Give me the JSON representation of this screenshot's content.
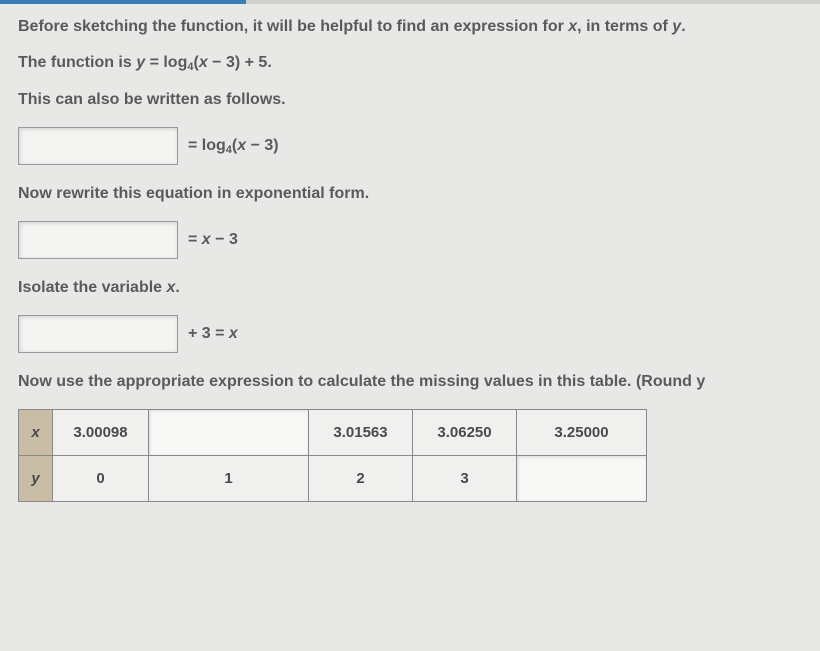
{
  "intro": {
    "p1_a": "Before sketching the function, it will be helpful to find an expression for ",
    "p1_x": "x",
    "p1_b": ", in terms of ",
    "p1_y": "y",
    "p1_c": ".",
    "p2_a": "The function is ",
    "p2_y": "y",
    "p2_eq": " = log",
    "p2_base": "4",
    "p2_b": "(",
    "p2_x": "x",
    "p2_c": " − 3) + 5.",
    "p3": "This can also be written as follows."
  },
  "step1": {
    "rhs_a": " = log",
    "rhs_base": "4",
    "rhs_b": "(",
    "rhs_x": "x",
    "rhs_c": " − 3)"
  },
  "step2": {
    "label": "Now rewrite this equation in exponential form.",
    "rhs_a": " = ",
    "rhs_x": "x",
    "rhs_b": " − 3"
  },
  "step3": {
    "label": "Isolate the variable ",
    "label_x": "x",
    "label_b": ".",
    "rhs_a": " + 3 = ",
    "rhs_x": "x"
  },
  "table": {
    "caption": "Now use the appropriate expression to calculate the missing values in this table. (Round y",
    "header_x": "x",
    "header_y": "y",
    "x": [
      "3.00098",
      "",
      "3.01563",
      "3.06250",
      "3.25000"
    ],
    "y": [
      "0",
      "1",
      "2",
      "3",
      ""
    ]
  },
  "colors": {
    "page_bg": "#e8e8e6",
    "text": "#5a5a5a",
    "border": "#888888",
    "th_bg": "#c9bda6",
    "cell_bg": "#f0f0ee",
    "topbar_accent": "#3b7db5"
  }
}
